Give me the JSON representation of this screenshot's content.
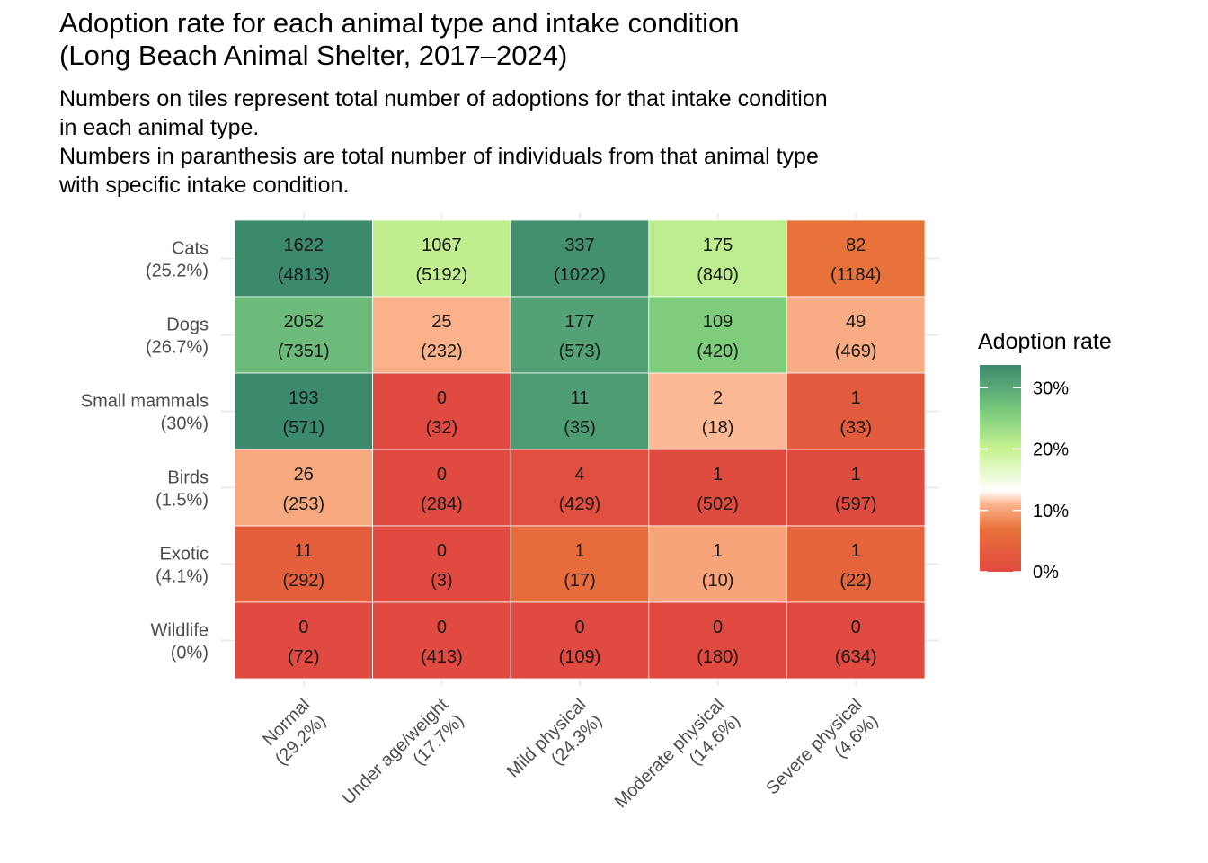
{
  "chart_data": {
    "type": "heatmap",
    "title": "Adoption rate for each animal type and intake condition\n(Long Beach Animal Shelter, 2017–2024)",
    "subtitle": "Numbers on tiles represent total number of adoptions for that intake condition\nin each animal type.\nNumbers in paranthesis are total number of individuals from that animal type\nwith specific intake condition.",
    "x_categories": [
      {
        "name": "Normal",
        "pct": "(29.2%)"
      },
      {
        "name": "Under age/weight",
        "pct": "(17.7%)"
      },
      {
        "name": "Mild physical",
        "pct": "(24.3%)"
      },
      {
        "name": "Moderate physical",
        "pct": "(14.6%)"
      },
      {
        "name": "Severe physical",
        "pct": "(4.6%)"
      }
    ],
    "y_categories": [
      {
        "name": "Cats",
        "pct": "(25.2%)"
      },
      {
        "name": "Dogs",
        "pct": "(26.7%)"
      },
      {
        "name": "Small mammals",
        "pct": "(30%)"
      },
      {
        "name": "Birds",
        "pct": "(1.5%)"
      },
      {
        "name": "Exotic",
        "pct": "(4.1%)"
      },
      {
        "name": "Wildlife",
        "pct": "(0%)"
      }
    ],
    "adoptions": [
      [
        1622,
        1067,
        337,
        175,
        82
      ],
      [
        2052,
        25,
        177,
        109,
        49
      ],
      [
        193,
        0,
        11,
        2,
        1
      ],
      [
        26,
        0,
        4,
        1,
        1
      ],
      [
        11,
        0,
        1,
        1,
        1
      ],
      [
        0,
        0,
        0,
        0,
        0
      ]
    ],
    "totals": [
      [
        4813,
        5192,
        1022,
        840,
        1184
      ],
      [
        7351,
        232,
        573,
        420,
        469
      ],
      [
        571,
        32,
        35,
        18,
        33
      ],
      [
        253,
        284,
        429,
        502,
        597
      ],
      [
        292,
        3,
        17,
        10,
        22
      ],
      [
        72,
        413,
        109,
        180,
        634
      ]
    ],
    "legend": {
      "title": "Adoption rate",
      "ticks": [
        {
          "value": 0,
          "label": "0%"
        },
        {
          "value": 10,
          "label": "10%"
        },
        {
          "value": 20,
          "label": "20%"
        },
        {
          "value": 30,
          "label": "30%"
        }
      ],
      "range": [
        0,
        33.7
      ],
      "colors": [
        {
          "value": 0,
          "color": "#e04a40"
        },
        {
          "value": 7,
          "color": "#e8723a"
        },
        {
          "value": 11,
          "color": "#fcb58f"
        },
        {
          "value": 13.2,
          "color": "#ffffff"
        },
        {
          "value": 20,
          "color": "#c8f291"
        },
        {
          "value": 26,
          "color": "#7ccd7c"
        },
        {
          "value": 30,
          "color": "#5aa877"
        },
        {
          "value": 33.7,
          "color": "#3c8a6c"
        }
      ]
    }
  }
}
